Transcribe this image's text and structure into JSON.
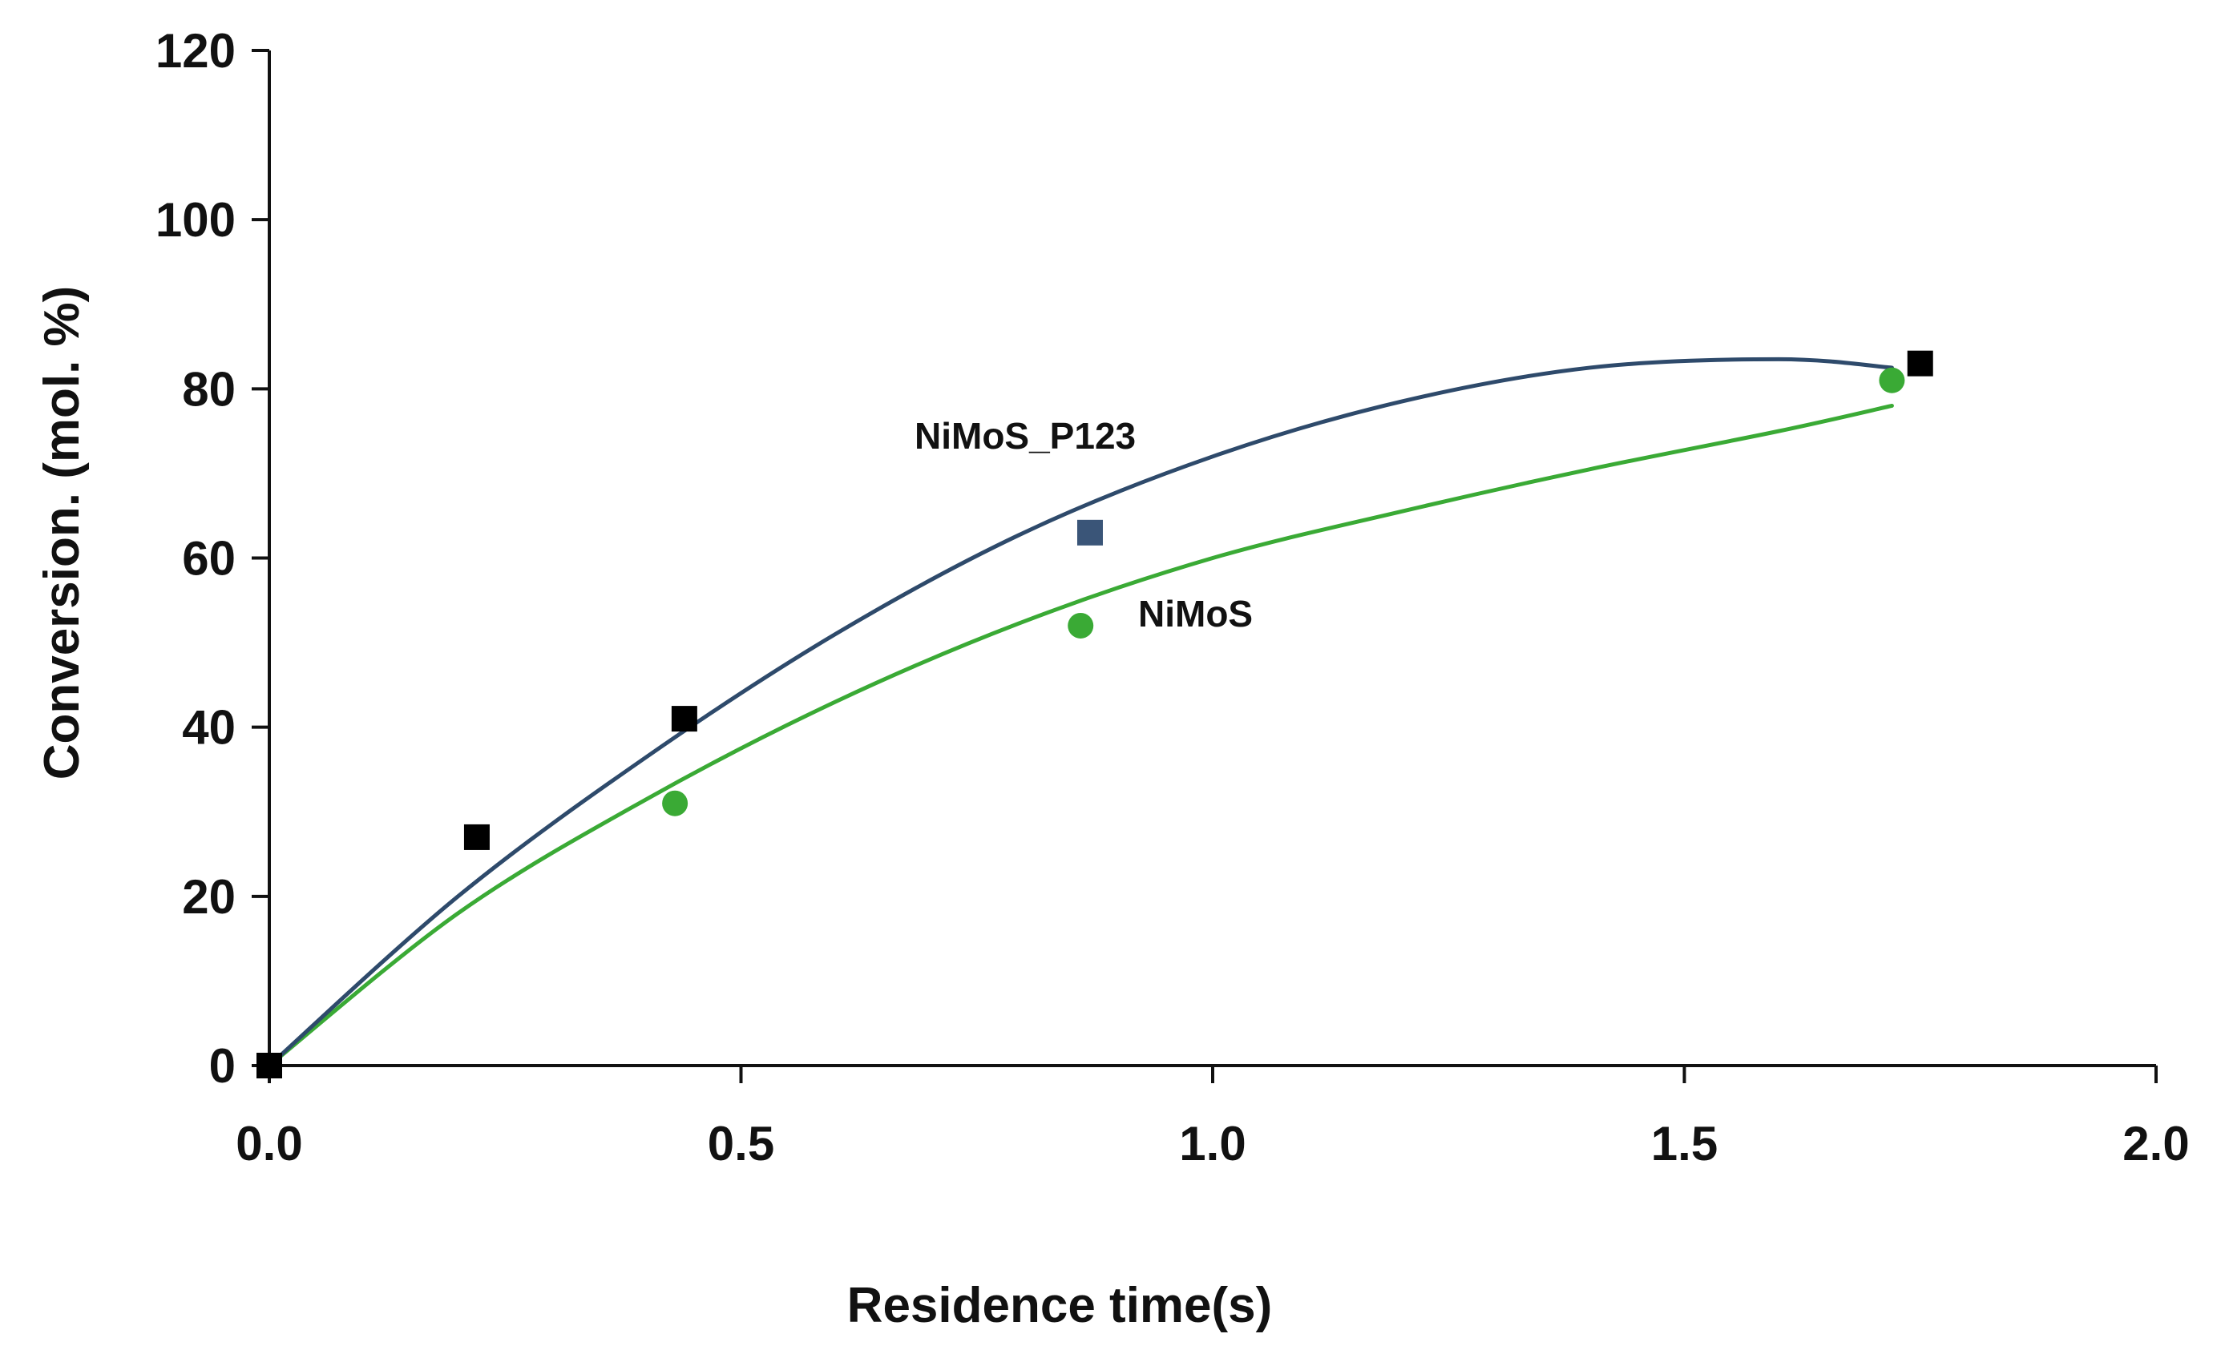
{
  "chart_data": {
    "type": "scatter",
    "title": "",
    "xlabel": "Residence time(s)",
    "ylabel": "Conversion. (mol. %)",
    "xlim": [
      0,
      2
    ],
    "ylim": [
      0,
      120
    ],
    "x_ticks": [
      0.0,
      0.5,
      1.0,
      1.5,
      2.0
    ],
    "x_tick_labels": [
      "0.0",
      "0.5",
      "1.0",
      "1.5",
      "2.0"
    ],
    "y_ticks": [
      0,
      20,
      40,
      60,
      80,
      100,
      120
    ],
    "y_tick_labels": [
      "0",
      "20",
      "40",
      "60",
      "80",
      "100",
      "120"
    ],
    "grid": false,
    "legend": "inline annotations",
    "series": [
      {
        "name": "NiMoS_P123",
        "label": "NiMoS_P123",
        "marker": "square",
        "marker_color": "#000000",
        "line_color": "#2e4a6b",
        "points": [
          {
            "x": 0.0,
            "y": 0
          },
          {
            "x": 0.22,
            "y": 27
          },
          {
            "x": 0.44,
            "y": 41
          },
          {
            "x": 0.87,
            "y": 63,
            "marker_color": "#3a5578"
          },
          {
            "x": 1.75,
            "y": 83
          }
        ],
        "trendline": [
          {
            "x": 0.0,
            "y": 0
          },
          {
            "x": 0.2,
            "y": 20
          },
          {
            "x": 0.4,
            "y": 36.5
          },
          {
            "x": 0.6,
            "y": 51
          },
          {
            "x": 0.8,
            "y": 63
          },
          {
            "x": 1.0,
            "y": 72
          },
          {
            "x": 1.2,
            "y": 78.5
          },
          {
            "x": 1.4,
            "y": 82.5
          },
          {
            "x": 1.6,
            "y": 83.5
          },
          {
            "x": 1.72,
            "y": 82.5
          }
        ]
      },
      {
        "name": "NiMoS",
        "label": "NiMoS",
        "marker": "circle",
        "marker_color": "#3aaa35",
        "line_color": "#3aaa35",
        "points": [
          {
            "x": 0.0,
            "y": 0
          },
          {
            "x": 0.43,
            "y": 31
          },
          {
            "x": 0.86,
            "y": 52
          },
          {
            "x": 1.72,
            "y": 81
          }
        ],
        "trendline": [
          {
            "x": 0.0,
            "y": 0
          },
          {
            "x": 0.2,
            "y": 18
          },
          {
            "x": 0.4,
            "y": 31.5
          },
          {
            "x": 0.6,
            "y": 43
          },
          {
            "x": 0.8,
            "y": 52.5
          },
          {
            "x": 1.0,
            "y": 60
          },
          {
            "x": 1.2,
            "y": 65.5
          },
          {
            "x": 1.4,
            "y": 70.5
          },
          {
            "x": 1.6,
            "y": 75
          },
          {
            "x": 1.72,
            "y": 78
          }
        ]
      }
    ]
  }
}
